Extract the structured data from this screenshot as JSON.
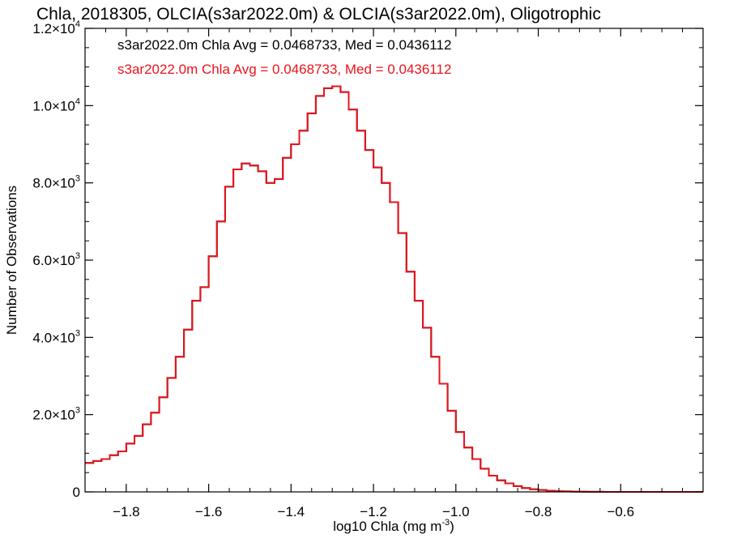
{
  "chart_data": {
    "type": "line",
    "title": "Chla, 2018305, OLCIA(s3ar2022.0m) & OLCIA(s3ar2022.0m), Oligotrophic",
    "xlabel": "log10 Chla (mg m",
    "xlabel_sup": "-3",
    "xlabel_close": ")",
    "ylabel": "Number of Observations",
    "xlim": [
      -1.9,
      -0.4
    ],
    "ylim": [
      0,
      12000
    ],
    "xticks": [
      -1.8,
      -1.6,
      -1.4,
      -1.2,
      -1.0,
      -0.8,
      -0.6
    ],
    "xtick_labels": [
      "−1.8",
      "−1.6",
      "−1.4",
      "−1.2",
      "−1.0",
      "−0.8",
      "−0.6"
    ],
    "yticks": [
      0,
      2000,
      4000,
      6000,
      8000,
      10000,
      12000
    ],
    "ytick_labels": [
      {
        "mantissa": "0",
        "exp": ""
      },
      {
        "mantissa": "2.0×10",
        "exp": "3"
      },
      {
        "mantissa": "4.0×10",
        "exp": "3"
      },
      {
        "mantissa": "6.0×10",
        "exp": "3"
      },
      {
        "mantissa": "8.0×10",
        "exp": "3"
      },
      {
        "mantissa": "1.0×10",
        "exp": "4"
      },
      {
        "mantissa": "1.2×10",
        "exp": "4"
      }
    ],
    "grid": false,
    "annotations": [
      {
        "text": "s3ar2022.0m Chla Avg = 0.0468733, Med = 0.0436112",
        "color": "#000000"
      },
      {
        "text": "s3ar2022.0m Chla Avg = 0.0468733, Med = 0.0436112",
        "color": "#e8141c"
      }
    ],
    "series": [
      {
        "color": "#000000",
        "style": "step",
        "x": [
          -1.9,
          -1.88,
          -1.86,
          -1.84,
          -1.82,
          -1.8,
          -1.78,
          -1.76,
          -1.74,
          -1.72,
          -1.7,
          -1.68,
          -1.66,
          -1.64,
          -1.62,
          -1.6,
          -1.58,
          -1.56,
          -1.54,
          -1.52,
          -1.5,
          -1.48,
          -1.46,
          -1.44,
          -1.42,
          -1.4,
          -1.38,
          -1.36,
          -1.34,
          -1.32,
          -1.3,
          -1.28,
          -1.26,
          -1.24,
          -1.22,
          -1.2,
          -1.18,
          -1.16,
          -1.14,
          -1.12,
          -1.1,
          -1.08,
          -1.06,
          -1.04,
          -1.02,
          -1.0,
          -0.98,
          -0.96,
          -0.94,
          -0.92,
          -0.9,
          -0.88,
          -0.86,
          -0.84,
          -0.82,
          -0.8,
          -0.78,
          -0.76,
          -0.74,
          -0.72,
          -0.7,
          -0.68,
          -0.66,
          -0.64,
          -0.62,
          -0.6,
          -0.55,
          -0.5,
          -0.45,
          -0.4
        ],
        "y": [
          750,
          800,
          850,
          950,
          1050,
          1250,
          1450,
          1750,
          2050,
          2450,
          2950,
          3500,
          4200,
          4950,
          5300,
          6100,
          7000,
          7900,
          8350,
          8500,
          8450,
          8300,
          8000,
          8100,
          8650,
          9000,
          9350,
          9800,
          10250,
          10450,
          10500,
          10350,
          9900,
          9350,
          8850,
          8400,
          8000,
          7500,
          6700,
          5700,
          4950,
          4250,
          3500,
          2800,
          2100,
          1550,
          1150,
          850,
          600,
          420,
          300,
          220,
          150,
          100,
          70,
          50,
          30,
          20,
          12,
          8,
          5,
          3,
          2,
          1,
          1,
          0,
          0,
          0,
          0,
          0
        ]
      },
      {
        "color": "#e8141c",
        "style": "step",
        "x": [
          -1.9,
          -1.88,
          -1.86,
          -1.84,
          -1.82,
          -1.8,
          -1.78,
          -1.76,
          -1.74,
          -1.72,
          -1.7,
          -1.68,
          -1.66,
          -1.64,
          -1.62,
          -1.6,
          -1.58,
          -1.56,
          -1.54,
          -1.52,
          -1.5,
          -1.48,
          -1.46,
          -1.44,
          -1.42,
          -1.4,
          -1.38,
          -1.36,
          -1.34,
          -1.32,
          -1.3,
          -1.28,
          -1.26,
          -1.24,
          -1.22,
          -1.2,
          -1.18,
          -1.16,
          -1.14,
          -1.12,
          -1.1,
          -1.08,
          -1.06,
          -1.04,
          -1.02,
          -1.0,
          -0.98,
          -0.96,
          -0.94,
          -0.92,
          -0.9,
          -0.88,
          -0.86,
          -0.84,
          -0.82,
          -0.8,
          -0.78,
          -0.76,
          -0.74,
          -0.72,
          -0.7,
          -0.68,
          -0.66,
          -0.64,
          -0.62,
          -0.6,
          -0.55,
          -0.5,
          -0.45,
          -0.4
        ],
        "y": [
          750,
          800,
          850,
          950,
          1050,
          1250,
          1450,
          1750,
          2050,
          2450,
          2950,
          3500,
          4200,
          4950,
          5300,
          6100,
          7000,
          7900,
          8350,
          8500,
          8450,
          8300,
          8000,
          8100,
          8650,
          9000,
          9350,
          9800,
          10250,
          10450,
          10500,
          10350,
          9900,
          9350,
          8850,
          8400,
          8000,
          7500,
          6700,
          5700,
          4950,
          4250,
          3500,
          2800,
          2100,
          1550,
          1150,
          850,
          600,
          420,
          300,
          220,
          150,
          100,
          70,
          50,
          30,
          20,
          12,
          8,
          5,
          3,
          2,
          1,
          1,
          0,
          0,
          0,
          0,
          0
        ]
      }
    ]
  }
}
